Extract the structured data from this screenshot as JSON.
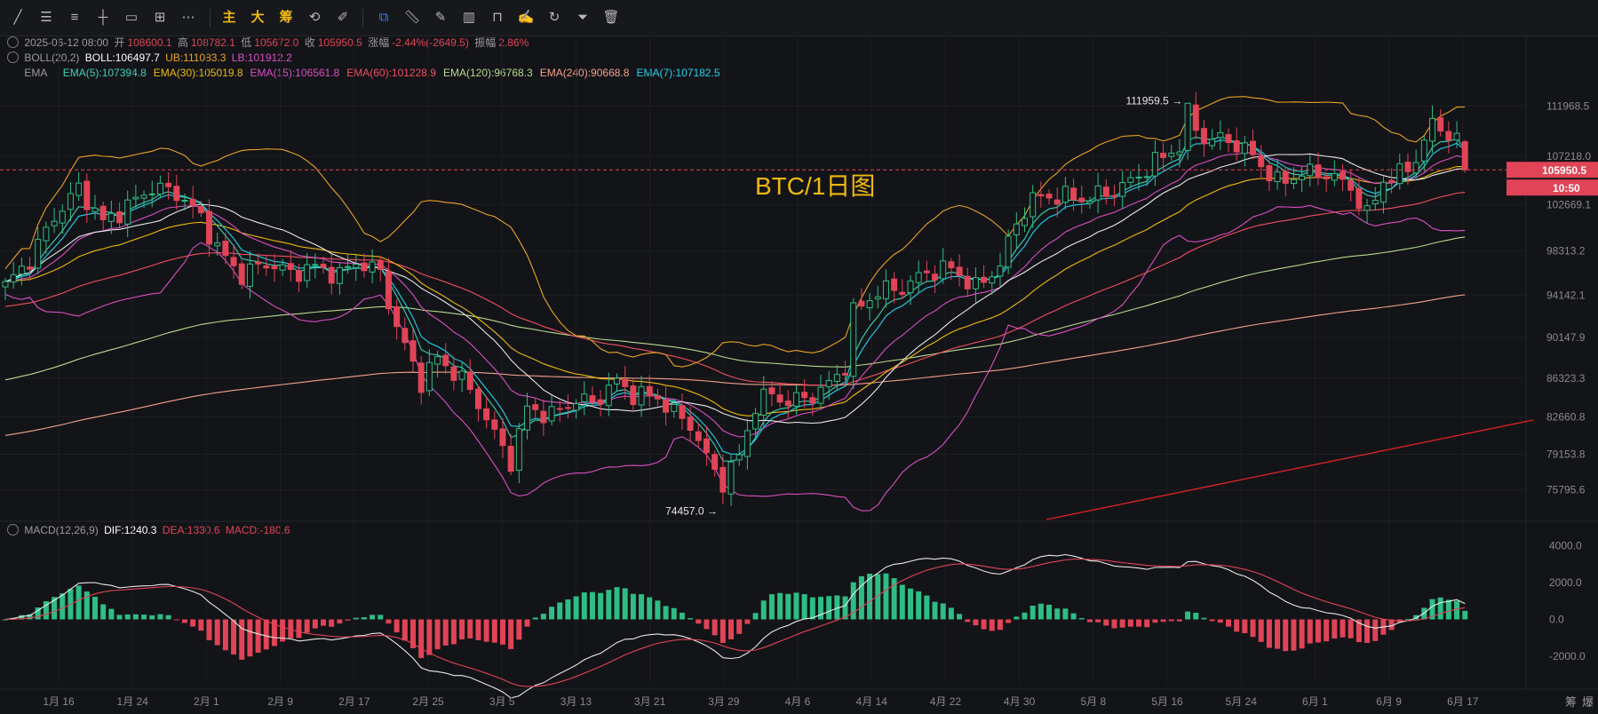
{
  "toolbar": {
    "main_label": "主",
    "big_label": "大",
    "chip_label": "筹"
  },
  "ohlc": {
    "date": "2025-06-12 08:00",
    "open_label": "开",
    "open": "108600.1",
    "high_label": "高",
    "high": "108782.1",
    "low_label": "低",
    "low": "105672.0",
    "close_label": "收",
    "close": "105950.5",
    "change_label": "涨幅",
    "change": "-2.44%(-2649.5)",
    "amp_label": "振幅",
    "amp": "2.86%"
  },
  "boll": {
    "name": "BOLL(20,2)",
    "mid": "BOLL:106497.7",
    "ub": "UB:111083.3",
    "lb": "LB:101912.2"
  },
  "ema": {
    "name": "EMA",
    "items": [
      {
        "label": "EMA(5):107394.8",
        "color": "#3cd2b4"
      },
      {
        "label": "EMA(30):105019.8",
        "color": "#f0b90b"
      },
      {
        "label": "EMA(15):106561.8",
        "color": "#d94fc4"
      },
      {
        "label": "EMA(60):101228.9",
        "color": "#f04f60"
      },
      {
        "label": "EMA(120):96768.3",
        "color": "#b6d98a"
      },
      {
        "label": "EMA(240):90668.8",
        "color": "#f3a08a"
      },
      {
        "label": "EMA(7):107182.5",
        "color": "#21d3ee"
      }
    ]
  },
  "macd": {
    "name": "MACD(12,26,9)",
    "dif": "DIF:1240.3",
    "dea": "DEA:1330.6",
    "macd": "MACD:-180.6"
  },
  "side_labels": [
    "筹",
    "爆"
  ],
  "colors": {
    "up": "#2ebd85",
    "down": "#e04456",
    "boll_mid": "#e8e8e8",
    "boll_band": "#e8a324",
    "lb_band": "#d94fc4",
    "trend": "#e02424"
  },
  "chart_data": {
    "type": "candlestick",
    "title": "BTC/1日图",
    "price_axis": {
      "range": [
        73000,
        114000
      ],
      "ticks": [
        "111968.5",
        "107218.0",
        "102669.1",
        "98313.2",
        "94142.1",
        "90147.9",
        "86323.3",
        "82660.8",
        "79153.8",
        "75795.6"
      ]
    },
    "last_price": {
      "value": "105950.5",
      "countdown": "10:50"
    },
    "x_axis_ticks": [
      "1月 16",
      "1月 24",
      "2月 1",
      "2月 9",
      "2月 17",
      "2月 25",
      "3月 5",
      "3月 13",
      "3月 21",
      "3月 29",
      "4月 6",
      "4月 14",
      "4月 22",
      "4月 30",
      "5月 8",
      "5月 16",
      "5月 24",
      "6月 1",
      "6月 9",
      "6月 17"
    ],
    "annotations": [
      {
        "label": "111959.5 →",
        "value": 111959.5
      },
      {
        "label": "74457.0 →",
        "value": 74457.0
      }
    ],
    "macd_axis": {
      "range": [
        -3500,
        4800
      ],
      "ticks": [
        "4000.0",
        "2000.0",
        "0.0",
        "-2000.0"
      ]
    },
    "close_anchors": [
      [
        0,
        95000
      ],
      [
        3,
        97500
      ],
      [
        6,
        101500
      ],
      [
        9,
        104200
      ],
      [
        12,
        101000
      ],
      [
        15,
        102500
      ],
      [
        18,
        104300
      ],
      [
        21,
        103800
      ],
      [
        24,
        101500
      ],
      [
        26,
        98500
      ],
      [
        29,
        96000
      ],
      [
        32,
        97200
      ],
      [
        35,
        96200
      ],
      [
        38,
        96800
      ],
      [
        41,
        96000
      ],
      [
        43,
        97300
      ],
      [
        46,
        96300
      ],
      [
        48,
        91000
      ],
      [
        51,
        86000
      ],
      [
        53,
        88200
      ],
      [
        56,
        86200
      ],
      [
        58,
        84000
      ],
      [
        60,
        81000
      ],
      [
        62,
        78500
      ],
      [
        64,
        83500
      ],
      [
        67,
        82800
      ],
      [
        70,
        84300
      ],
      [
        72,
        84000
      ],
      [
        75,
        86000
      ],
      [
        77,
        84800
      ],
      [
        80,
        84500
      ],
      [
        82,
        83000
      ],
      [
        84,
        82000
      ],
      [
        86,
        78800
      ],
      [
        88,
        76500
      ],
      [
        90,
        79000
      ],
      [
        92,
        83800
      ],
      [
        94,
        84900
      ],
      [
        96,
        84000
      ],
      [
        98,
        84500
      ],
      [
        100,
        85000
      ],
      [
        103,
        87500
      ],
      [
        104,
        92500
      ],
      [
        107,
        94500
      ],
      [
        110,
        94800
      ],
      [
        113,
        96300
      ],
      [
        116,
        96700
      ],
      [
        119,
        94800
      ],
      [
        122,
        97000
      ],
      [
        124,
        101000
      ],
      [
        126,
        103200
      ],
      [
        129,
        103500
      ],
      [
        132,
        103200
      ],
      [
        135,
        103700
      ],
      [
        138,
        104800
      ],
      [
        141,
        106700
      ],
      [
        144,
        108200
      ],
      [
        145,
        111200
      ],
      [
        147,
        108800
      ],
      [
        150,
        108800
      ],
      [
        153,
        107300
      ],
      [
        156,
        104700
      ],
      [
        159,
        105600
      ],
      [
        162,
        105600
      ],
      [
        165,
        104300
      ],
      [
        167,
        101600
      ],
      [
        169,
        105000
      ],
      [
        171,
        105500
      ],
      [
        173,
        107000
      ],
      [
        175,
        110200
      ],
      [
        176,
        110000
      ],
      [
        178,
        108600
      ],
      [
        179,
        105950
      ]
    ]
  }
}
